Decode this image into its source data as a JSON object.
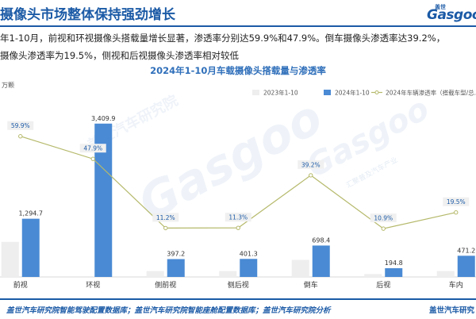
{
  "header": {
    "title": "摄像头市场整体保持强劲增长",
    "brand_small": "盖世",
    "brand_main": "Gasgoo"
  },
  "summary": {
    "line1": "年1-10月，前视和环视摄像头搭载量增长显著，渗透率分别达59.9%和47.9%。倒车摄像头渗透率达39.2%，",
    "line2": "摄像头渗透率为19.5%，侧视和后视摄像头渗透率相对较低"
  },
  "watermark": {
    "cn": "盖世汽车研究院",
    "en": "Gasgoo",
    "tagline": "汇聚普及汽车产业"
  },
  "chart_data": {
    "type": "bar",
    "title": "2024年1-10月车载摄像头搭载量与渗透率",
    "ylabel": "万颗",
    "categories": [
      "前视",
      "环视",
      "侧前视",
      "侧后视",
      "倒车",
      "后视",
      "车内"
    ],
    "series": [
      {
        "name": "2023年1-10",
        "type": "bar",
        "color": "#eeeeee",
        "values": [
          780,
          null,
          130,
          130,
          380,
          65,
          130
        ]
      },
      {
        "name": "2024年1-10",
        "type": "bar",
        "color": "#4a8ad4",
        "values": [
          1294.7,
          3409.9,
          397.2,
          401.3,
          698.4,
          194.8,
          471.2
        ]
      },
      {
        "name": "2024年车辆渗透率（搭载车型/总...",
        "type": "line",
        "color": "#b5b96a",
        "values": [
          59.9,
          47.9,
          11.2,
          11.3,
          39.2,
          10.9,
          19.5
        ]
      }
    ],
    "bar_labels": [
      "1,294.7",
      "3,409.9",
      "397.2",
      "401.3",
      "698.4",
      "194.8",
      "471.2"
    ],
    "rate_labels": [
      "59.9%",
      "47.9%",
      "11.2%",
      "11.3%",
      "39.2%",
      "10.9%",
      "19.5%"
    ],
    "ylim": [
      0,
      3600
    ],
    "y2lim": [
      0,
      80
    ],
    "legend_position": "top-right",
    "grid": false
  },
  "footer": {
    "source": "盖世汽车研究院智能驾驶配置数据库；盖世汽车研究院智能座舱配置数据库；盖世汽车研究院分析",
    "brand": "盖世汽车研究"
  }
}
